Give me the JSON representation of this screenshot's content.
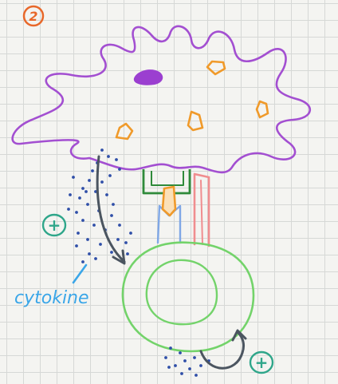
{
  "step_badge": {
    "text": "2",
    "color": "#e8682a"
  },
  "labels": {
    "cytokine": "cytokine",
    "plus_left": "+",
    "plus_bottom": "+"
  },
  "colors": {
    "cell_outline": "#a34fd1",
    "nucleus": "#9b3fd0",
    "vesicles": "#f09a2a",
    "mhc": "#2f8a3a",
    "peptide": "#f09a2a",
    "tcr": "#7fa7e6",
    "coreceptor": "#f08d8f",
    "t_cell": "#73d36a",
    "arrow": "#4b5560",
    "dots": "#2f4fa8",
    "label": "#3aa6e8",
    "plus": "#2fa68a"
  }
}
